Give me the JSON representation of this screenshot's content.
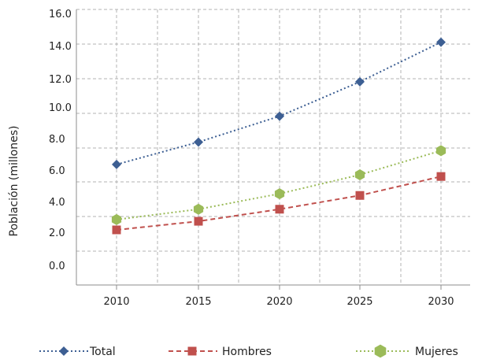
{
  "chart_data": {
    "type": "line",
    "x": [
      "2010",
      "2015",
      "2020",
      "2025",
      "2030"
    ],
    "xlabel": "",
    "ylabel": "Población (millones)",
    "ylim": [
      0,
      16
    ],
    "yticks": [
      "16.0",
      "14.0",
      "12.0",
      "10.0",
      "8.0",
      "6.0",
      "4.0",
      "2.0",
      "0.0"
    ],
    "grid": true,
    "legend_position": "bottom",
    "series": [
      {
        "name": "Total",
        "values": [
          7.0,
          8.3,
          9.8,
          11.8,
          14.1
        ],
        "color": "#3d5f93",
        "marker": "diamond",
        "line": "dotted"
      },
      {
        "name": "Hombres",
        "values": [
          3.2,
          3.7,
          4.4,
          5.2,
          6.3
        ],
        "color": "#c0504d",
        "marker": "square",
        "line": "dashed"
      },
      {
        "name": "Mujeres",
        "values": [
          3.8,
          4.4,
          5.3,
          6.4,
          7.8
        ],
        "color": "#9bbb59",
        "marker": "hexagon",
        "line": "dotted"
      }
    ]
  }
}
